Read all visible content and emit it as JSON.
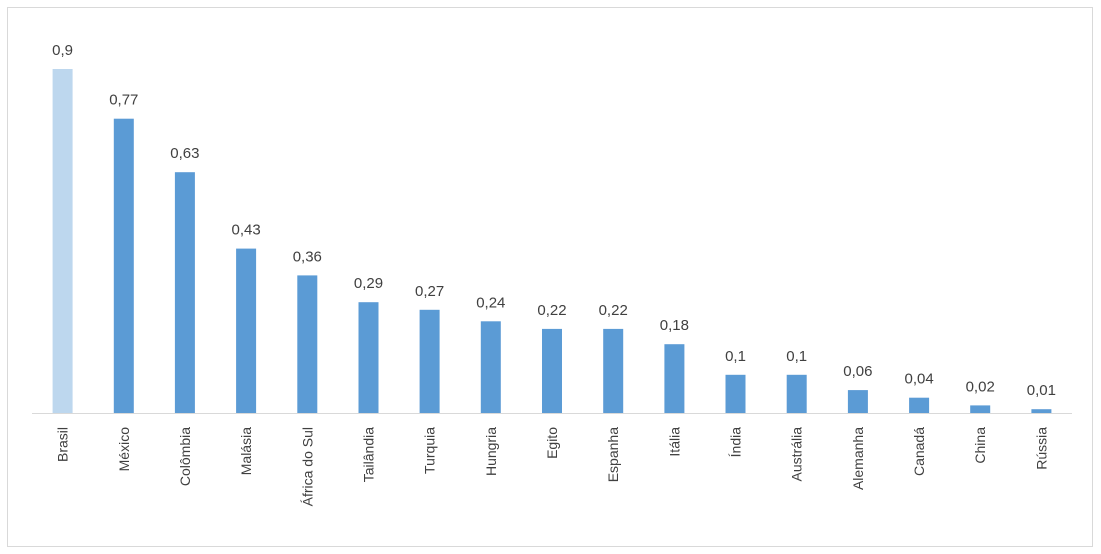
{
  "chart_data": {
    "type": "bar",
    "title": "",
    "xlabel": "",
    "ylabel": "",
    "categories": [
      "Brasil",
      "México",
      "Colômbia",
      "Malásia",
      "África do Sul",
      "Tailândia",
      "Turquia",
      "Hungria",
      "Egito",
      "Espanha",
      "Itália",
      "Índia",
      "Austrália",
      "Alemanha",
      "Canadá",
      "China",
      "Rússia"
    ],
    "values": [
      0.9,
      0.77,
      0.63,
      0.43,
      0.36,
      0.29,
      0.27,
      0.24,
      0.22,
      0.22,
      0.18,
      0.1,
      0.1,
      0.06,
      0.04,
      0.02,
      0.01
    ],
    "value_labels": [
      "0,9",
      "0,77",
      "0,63",
      "0,43",
      "0,36",
      "0,29",
      "0,27",
      "0,24",
      "0,22",
      "0,22",
      "0,18",
      "0,1",
      "0,1",
      "0,06",
      "0,04",
      "0,02",
      "0,01"
    ],
    "ylim": [
      0,
      0.9
    ],
    "grid": false,
    "legend": "none",
    "colors": {
      "highlight": "#bdd7ee",
      "bar": "#5b9bd5",
      "axis": "#d9d9d9",
      "text": "#404040"
    },
    "highlight_index": 0
  }
}
